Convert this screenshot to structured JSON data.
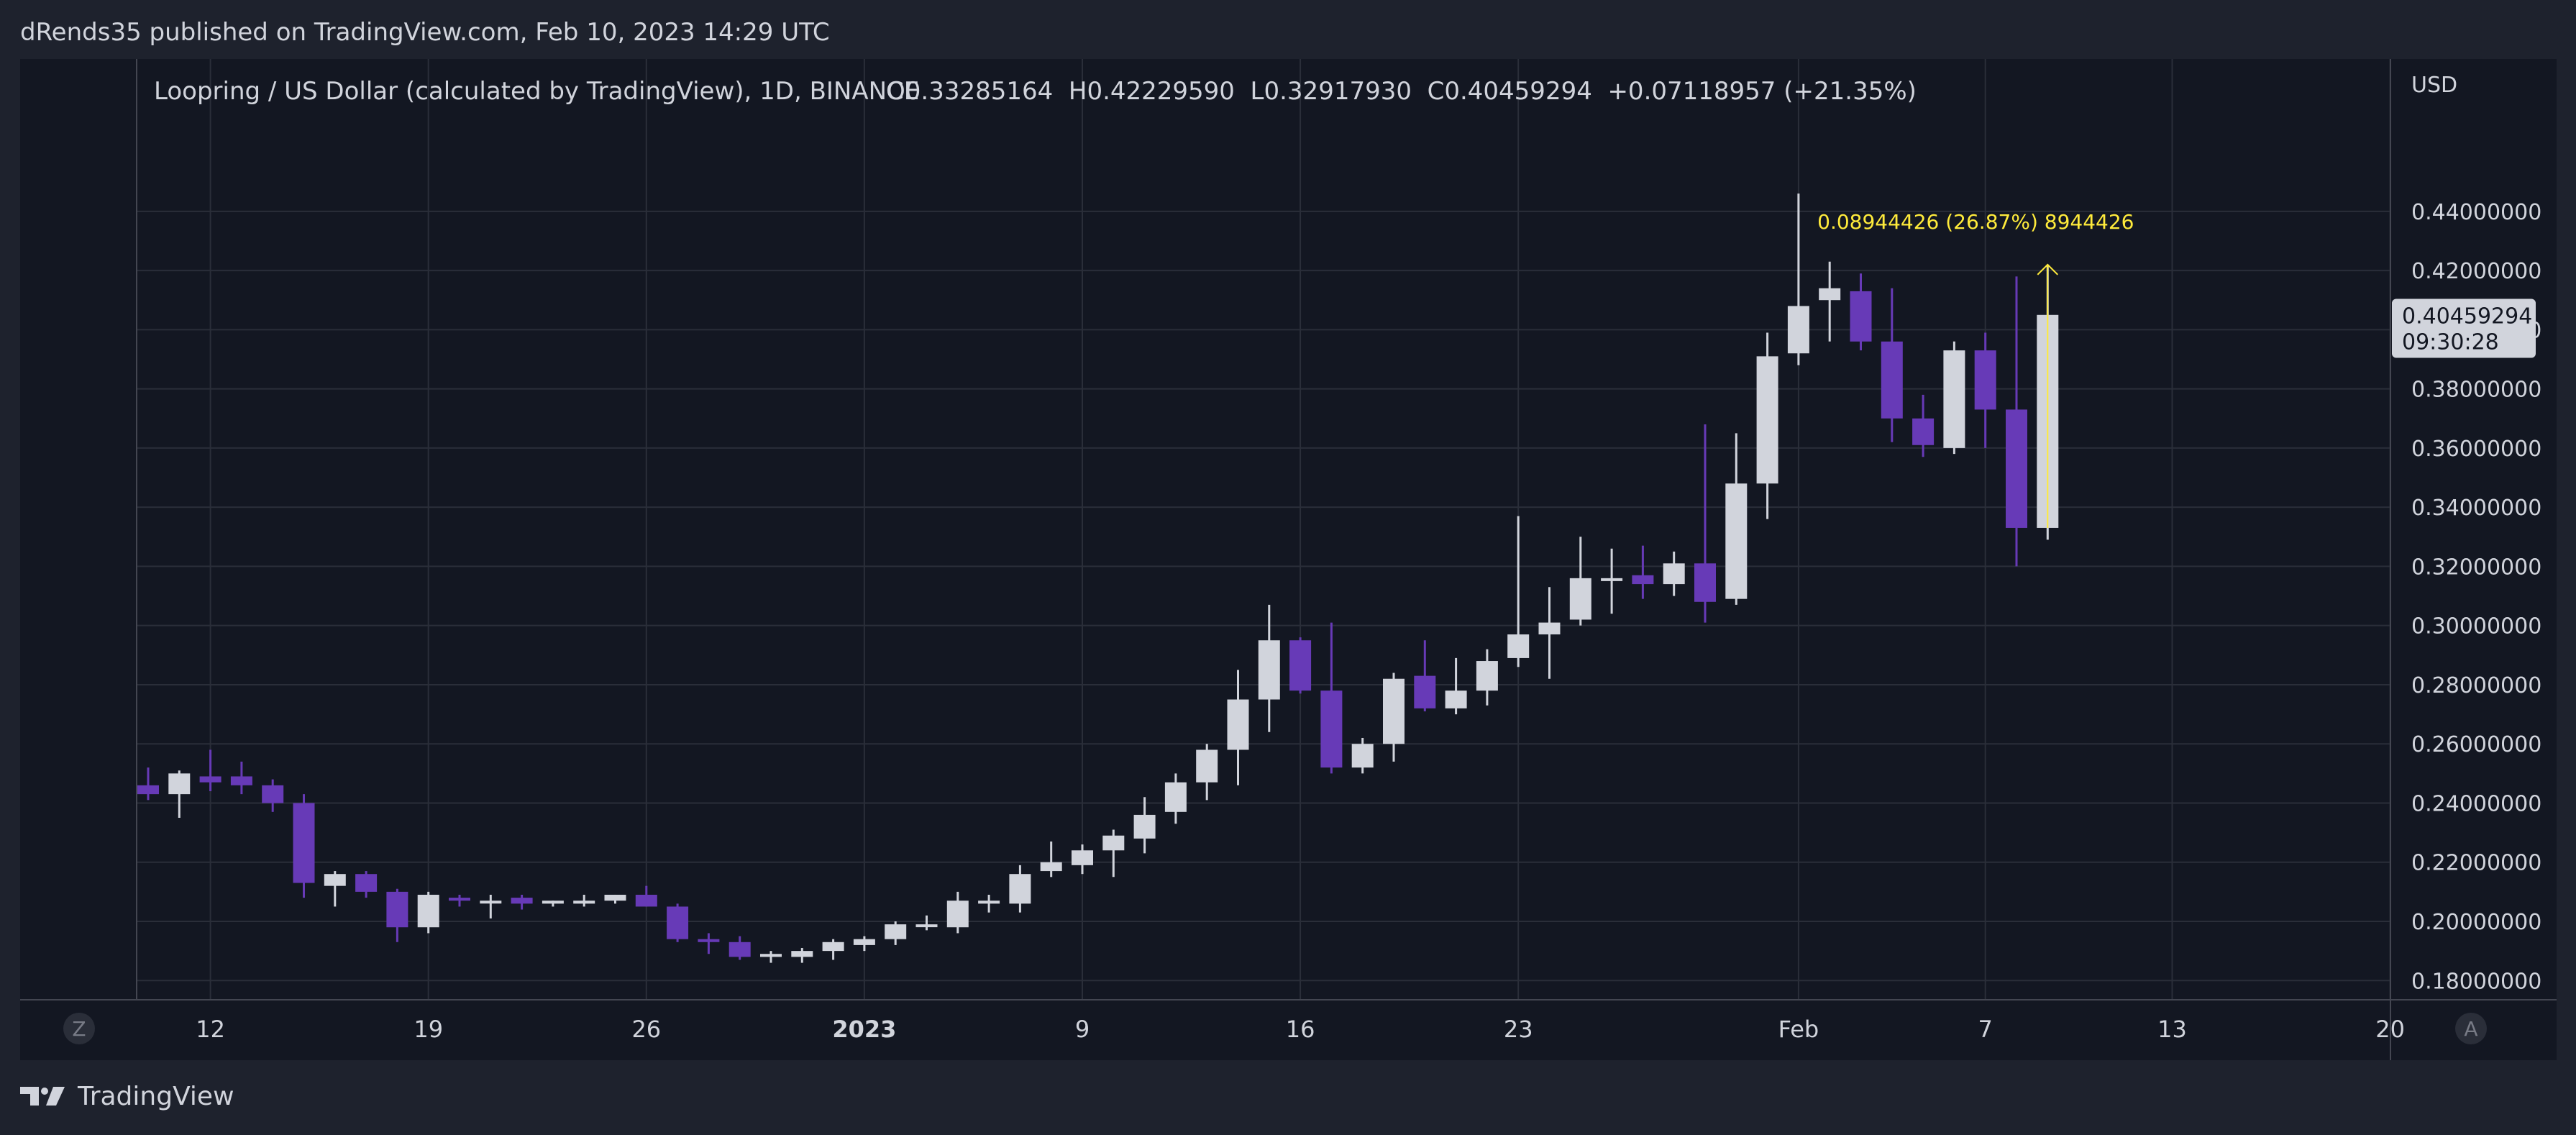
{
  "header": {
    "published_text": "dRends35 published on TradingView.com, Feb 10, 2023 14:29 UTC"
  },
  "footer": {
    "brand": "TradingView"
  },
  "buttons": {
    "left_scale": "Z",
    "right_scale": "A"
  },
  "colors": {
    "up": "#d1d4dc",
    "down": "#673ab7",
    "measure": "#ffeb3b",
    "background": "#131722",
    "grid": "#2a2e39"
  },
  "chart_data": {
    "type": "candlestick",
    "title": "Loopring / US Dollar (calculated by TradingView), 1D, BINANCE",
    "ohlc_readout": "O0.33285164  H0.42229590  L0.32917930  C0.40459294  +0.07118957 (+21.35%)",
    "currency": "USD",
    "ylim": [
      0.1735,
      0.4915
    ],
    "y_ticks": [
      "0.18000000",
      "0.20000000",
      "0.22000000",
      "0.24000000",
      "0.26000000",
      "0.28000000",
      "0.30000000",
      "0.32000000",
      "0.34000000",
      "0.36000000",
      "0.38000000",
      "0.40000000",
      "0.42000000",
      "0.44000000"
    ],
    "x_ticks": [
      {
        "label": "12",
        "date": "2022-12-12",
        "bold": false
      },
      {
        "label": "19",
        "date": "2022-12-19",
        "bold": false
      },
      {
        "label": "26",
        "date": "2022-12-26",
        "bold": false
      },
      {
        "label": "2023",
        "date": "2023-01-02",
        "bold": true
      },
      {
        "label": "9",
        "date": "2023-01-09",
        "bold": false
      },
      {
        "label": "16",
        "date": "2023-01-16",
        "bold": false
      },
      {
        "label": "23",
        "date": "2023-01-23",
        "bold": false
      },
      {
        "label": "Feb",
        "date": "2023-02-01",
        "bold": false
      },
      {
        "label": "7",
        "date": "2023-02-07",
        "bold": false
      },
      {
        "label": "13",
        "date": "2023-02-13",
        "bold": false
      },
      {
        "label": "20",
        "date": "2023-02-20",
        "bold": false
      }
    ],
    "last_price": {
      "value": "0.40459294",
      "countdown": "09:30:28"
    },
    "measure_label": "0.08944426 (26.87%) 8944426",
    "candles": [
      {
        "date": "2022-12-10",
        "o": 0.246,
        "h": 0.252,
        "l": 0.241,
        "c": 0.243
      },
      {
        "date": "2022-12-11",
        "o": 0.243,
        "h": 0.251,
        "l": 0.235,
        "c": 0.25
      },
      {
        "date": "2022-12-12",
        "o": 0.249,
        "h": 0.258,
        "l": 0.244,
        "c": 0.247
      },
      {
        "date": "2022-12-13",
        "o": 0.249,
        "h": 0.254,
        "l": 0.243,
        "c": 0.246
      },
      {
        "date": "2022-12-14",
        "o": 0.246,
        "h": 0.248,
        "l": 0.237,
        "c": 0.24
      },
      {
        "date": "2022-12-15",
        "o": 0.24,
        "h": 0.243,
        "l": 0.208,
        "c": 0.213
      },
      {
        "date": "2022-12-16",
        "o": 0.212,
        "h": 0.217,
        "l": 0.205,
        "c": 0.216
      },
      {
        "date": "2022-12-17",
        "o": 0.216,
        "h": 0.217,
        "l": 0.208,
        "c": 0.21
      },
      {
        "date": "2022-12-18",
        "o": 0.21,
        "h": 0.211,
        "l": 0.193,
        "c": 0.198
      },
      {
        "date": "2022-12-19",
        "o": 0.198,
        "h": 0.21,
        "l": 0.196,
        "c": 0.209
      },
      {
        "date": "2022-12-20",
        "o": 0.208,
        "h": 0.209,
        "l": 0.205,
        "c": 0.207
      },
      {
        "date": "2022-12-21",
        "o": 0.207,
        "h": 0.209,
        "l": 0.201,
        "c": 0.207
      },
      {
        "date": "2022-12-22",
        "o": 0.208,
        "h": 0.209,
        "l": 0.204,
        "c": 0.206
      },
      {
        "date": "2022-12-23",
        "o": 0.206,
        "h": 0.207,
        "l": 0.205,
        "c": 0.207
      },
      {
        "date": "2022-12-24",
        "o": 0.206,
        "h": 0.209,
        "l": 0.205,
        "c": 0.207
      },
      {
        "date": "2022-12-25",
        "o": 0.207,
        "h": 0.209,
        "l": 0.206,
        "c": 0.209
      },
      {
        "date": "2022-12-26",
        "o": 0.209,
        "h": 0.212,
        "l": 0.205,
        "c": 0.205
      },
      {
        "date": "2022-12-27",
        "o": 0.205,
        "h": 0.206,
        "l": 0.193,
        "c": 0.194
      },
      {
        "date": "2022-12-28",
        "o": 0.194,
        "h": 0.196,
        "l": 0.189,
        "c": 0.193
      },
      {
        "date": "2022-12-29",
        "o": 0.193,
        "h": 0.195,
        "l": 0.187,
        "c": 0.188
      },
      {
        "date": "2022-12-30",
        "o": 0.188,
        "h": 0.19,
        "l": 0.186,
        "c": 0.189
      },
      {
        "date": "2022-12-31",
        "o": 0.188,
        "h": 0.191,
        "l": 0.186,
        "c": 0.19
      },
      {
        "date": "2023-01-01",
        "o": 0.19,
        "h": 0.194,
        "l": 0.187,
        "c": 0.193
      },
      {
        "date": "2023-01-02",
        "o": 0.192,
        "h": 0.195,
        "l": 0.19,
        "c": 0.194
      },
      {
        "date": "2023-01-03",
        "o": 0.194,
        "h": 0.2,
        "l": 0.192,
        "c": 0.199
      },
      {
        "date": "2023-01-04",
        "o": 0.199,
        "h": 0.202,
        "l": 0.197,
        "c": 0.199
      },
      {
        "date": "2023-01-05",
        "o": 0.198,
        "h": 0.21,
        "l": 0.196,
        "c": 0.207
      },
      {
        "date": "2023-01-06",
        "o": 0.206,
        "h": 0.209,
        "l": 0.203,
        "c": 0.207
      },
      {
        "date": "2023-01-07",
        "o": 0.206,
        "h": 0.219,
        "l": 0.203,
        "c": 0.216
      },
      {
        "date": "2023-01-08",
        "o": 0.217,
        "h": 0.227,
        "l": 0.215,
        "c": 0.22
      },
      {
        "date": "2023-01-09",
        "o": 0.219,
        "h": 0.226,
        "l": 0.216,
        "c": 0.224
      },
      {
        "date": "2023-01-10",
        "o": 0.224,
        "h": 0.231,
        "l": 0.215,
        "c": 0.229
      },
      {
        "date": "2023-01-11",
        "o": 0.228,
        "h": 0.242,
        "l": 0.223,
        "c": 0.236
      },
      {
        "date": "2023-01-12",
        "o": 0.237,
        "h": 0.25,
        "l": 0.233,
        "c": 0.247
      },
      {
        "date": "2023-01-13",
        "o": 0.247,
        "h": 0.26,
        "l": 0.241,
        "c": 0.258
      },
      {
        "date": "2023-01-14",
        "o": 0.258,
        "h": 0.285,
        "l": 0.246,
        "c": 0.275
      },
      {
        "date": "2023-01-15",
        "o": 0.275,
        "h": 0.307,
        "l": 0.264,
        "c": 0.295
      },
      {
        "date": "2023-01-16",
        "o": 0.295,
        "h": 0.296,
        "l": 0.277,
        "c": 0.278
      },
      {
        "date": "2023-01-17",
        "o": 0.278,
        "h": 0.301,
        "l": 0.25,
        "c": 0.252
      },
      {
        "date": "2023-01-18",
        "o": 0.252,
        "h": 0.262,
        "l": 0.25,
        "c": 0.26
      },
      {
        "date": "2023-01-19",
        "o": 0.26,
        "h": 0.284,
        "l": 0.254,
        "c": 0.282
      },
      {
        "date": "2023-01-20",
        "o": 0.283,
        "h": 0.295,
        "l": 0.271,
        "c": 0.272
      },
      {
        "date": "2023-01-21",
        "o": 0.272,
        "h": 0.289,
        "l": 0.27,
        "c": 0.278
      },
      {
        "date": "2023-01-22",
        "o": 0.278,
        "h": 0.292,
        "l": 0.273,
        "c": 0.288
      },
      {
        "date": "2023-01-23",
        "o": 0.289,
        "h": 0.337,
        "l": 0.286,
        "c": 0.297
      },
      {
        "date": "2023-01-24",
        "o": 0.297,
        "h": 0.313,
        "l": 0.282,
        "c": 0.301
      },
      {
        "date": "2023-01-25",
        "o": 0.302,
        "h": 0.33,
        "l": 0.3,
        "c": 0.316
      },
      {
        "date": "2023-01-26",
        "o": 0.316,
        "h": 0.326,
        "l": 0.304,
        "c": 0.316
      },
      {
        "date": "2023-01-27",
        "o": 0.317,
        "h": 0.327,
        "l": 0.309,
        "c": 0.314
      },
      {
        "date": "2023-01-28",
        "o": 0.314,
        "h": 0.325,
        "l": 0.31,
        "c": 0.321
      },
      {
        "date": "2023-01-29",
        "o": 0.321,
        "h": 0.368,
        "l": 0.301,
        "c": 0.308
      },
      {
        "date": "2023-01-30",
        "o": 0.309,
        "h": 0.365,
        "l": 0.307,
        "c": 0.348
      },
      {
        "date": "2023-01-31",
        "o": 0.348,
        "h": 0.399,
        "l": 0.336,
        "c": 0.391
      },
      {
        "date": "2023-02-01",
        "o": 0.392,
        "h": 0.446,
        "l": 0.388,
        "c": 0.408
      },
      {
        "date": "2023-02-02",
        "o": 0.41,
        "h": 0.423,
        "l": 0.396,
        "c": 0.414
      },
      {
        "date": "2023-02-03",
        "o": 0.413,
        "h": 0.419,
        "l": 0.393,
        "c": 0.396
      },
      {
        "date": "2023-02-04",
        "o": 0.396,
        "h": 0.414,
        "l": 0.362,
        "c": 0.37
      },
      {
        "date": "2023-02-05",
        "o": 0.37,
        "h": 0.378,
        "l": 0.357,
        "c": 0.361
      },
      {
        "date": "2023-02-06",
        "o": 0.36,
        "h": 0.396,
        "l": 0.358,
        "c": 0.393
      },
      {
        "date": "2023-02-07",
        "o": 0.393,
        "h": 0.399,
        "l": 0.36,
        "c": 0.373
      },
      {
        "date": "2023-02-08",
        "o": 0.373,
        "h": 0.418,
        "l": 0.32,
        "c": 0.333
      },
      {
        "date": "2023-02-09",
        "o": 0.333,
        "h": 0.422,
        "l": 0.329,
        "c": 0.405
      }
    ]
  }
}
